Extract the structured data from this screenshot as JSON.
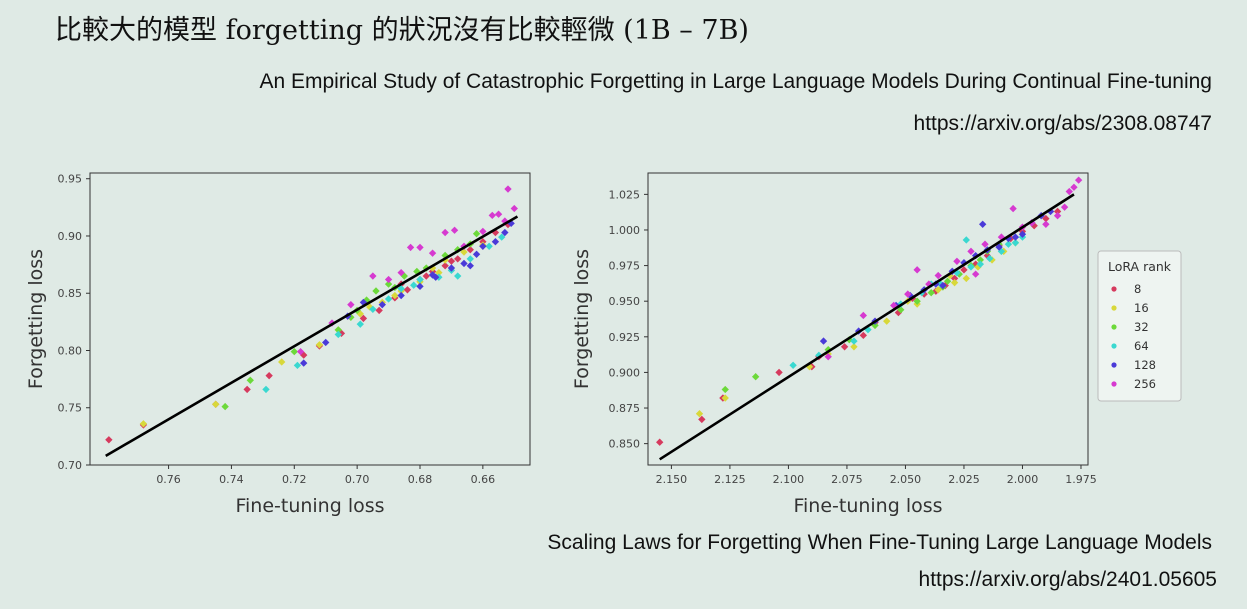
{
  "slide": {
    "title": "比較大的模型 forgetting 的狀況沒有比較輕微 (1B – 7B)"
  },
  "references": [
    {
      "title": "An Empirical Study of Catastrophic Forgetting in Large Language Models During Continual Fine-tuning",
      "url": "https://arxiv.org/abs/2308.08747"
    },
    {
      "title": "Scaling Laws for Forgetting When Fine-Tuning Large Language Models",
      "url": "https://arxiv.org/abs/2401.05605"
    }
  ],
  "colors": {
    "background": "#dfeae5",
    "fit_line": "#000000",
    "series": {
      "8": "#d63a5e",
      "16": "#d8d83a",
      "32": "#6cd93a",
      "64": "#3ad8d0",
      "128": "#4a3ad8",
      "256": "#d63ad0"
    }
  },
  "chart_data": [
    {
      "type": "scatter",
      "title": "",
      "xlabel": "Fine-tuning loss",
      "ylabel": "Forgetting loss",
      "xlim": [
        0.785,
        0.645
      ],
      "ylim": [
        0.7,
        0.955
      ],
      "x_reversed": true,
      "xticks": [
        "0.76",
        "0.74",
        "0.72",
        "0.70",
        "0.68",
        "0.66"
      ],
      "yticks": [
        "0.70",
        "0.75",
        "0.80",
        "0.85",
        "0.90",
        "0.95"
      ],
      "grid": false,
      "legend": null,
      "fit_line": {
        "x": [
          0.78,
          0.649
        ],
        "y": [
          0.708,
          0.917
        ]
      },
      "series": [
        {
          "key": "8",
          "points": [
            [
              0.779,
              0.722
            ],
            [
              0.768,
              0.735
            ],
            [
              0.745,
              0.753
            ],
            [
              0.735,
              0.766
            ],
            [
              0.728,
              0.778
            ],
            [
              0.717,
              0.796
            ],
            [
              0.712,
              0.804
            ],
            [
              0.705,
              0.815
            ],
            [
              0.698,
              0.828
            ],
            [
              0.693,
              0.835
            ],
            [
              0.688,
              0.846
            ],
            [
              0.684,
              0.853
            ],
            [
              0.68,
              0.862
            ],
            [
              0.676,
              0.869
            ],
            [
              0.672,
              0.874
            ],
            [
              0.668,
              0.88
            ],
            [
              0.664,
              0.888
            ],
            [
              0.66,
              0.895
            ],
            [
              0.656,
              0.903
            ],
            [
              0.652,
              0.91
            ],
            [
              0.686,
              0.858
            ],
            [
              0.678,
              0.865
            ],
            [
              0.67,
              0.878
            ]
          ]
        },
        {
          "key": "16",
          "points": [
            [
              0.768,
              0.736
            ],
            [
              0.745,
              0.753
            ],
            [
              0.724,
              0.79
            ],
            [
              0.712,
              0.805
            ],
            [
              0.706,
              0.818
            ],
            [
              0.699,
              0.832
            ],
            [
              0.692,
              0.842
            ],
            [
              0.686,
              0.852
            ],
            [
              0.68,
              0.86
            ],
            [
              0.676,
              0.872
            ],
            [
              0.672,
              0.879
            ],
            [
              0.666,
              0.886
            ],
            [
              0.66,
              0.892
            ],
            [
              0.696,
              0.838
            ],
            [
              0.688,
              0.848
            ],
            [
              0.674,
              0.868
            ]
          ]
        },
        {
          "key": "32",
          "points": [
            [
              0.742,
              0.751
            ],
            [
              0.734,
              0.774
            ],
            [
              0.72,
              0.799
            ],
            [
              0.706,
              0.818
            ],
            [
              0.7,
              0.835
            ],
            [
              0.697,
              0.844
            ],
            [
              0.694,
              0.852
            ],
            [
              0.688,
              0.855
            ],
            [
              0.685,
              0.865
            ],
            [
              0.678,
              0.872
            ],
            [
              0.672,
              0.883
            ],
            [
              0.668,
              0.888
            ],
            [
              0.664,
              0.893
            ],
            [
              0.662,
              0.902
            ],
            [
              0.702,
              0.829
            ],
            [
              0.69,
              0.858
            ],
            [
              0.681,
              0.869
            ]
          ]
        },
        {
          "key": "64",
          "points": [
            [
              0.729,
              0.766
            ],
            [
              0.719,
              0.787
            ],
            [
              0.706,
              0.814
            ],
            [
              0.699,
              0.823
            ],
            [
              0.69,
              0.845
            ],
            [
              0.686,
              0.854
            ],
            [
              0.68,
              0.862
            ],
            [
              0.676,
              0.866
            ],
            [
              0.674,
              0.864
            ],
            [
              0.67,
              0.87
            ],
            [
              0.668,
              0.865
            ],
            [
              0.664,
              0.88
            ],
            [
              0.658,
              0.891
            ],
            [
              0.654,
              0.899
            ],
            [
              0.695,
              0.836
            ],
            [
              0.682,
              0.857
            ]
          ]
        },
        {
          "key": "128",
          "points": [
            [
              0.717,
              0.789
            ],
            [
              0.71,
              0.807
            ],
            [
              0.703,
              0.83
            ],
            [
              0.698,
              0.842
            ],
            [
              0.692,
              0.84
            ],
            [
              0.686,
              0.848
            ],
            [
              0.68,
              0.856
            ],
            [
              0.675,
              0.864
            ],
            [
              0.67,
              0.872
            ],
            [
              0.666,
              0.876
            ],
            [
              0.662,
              0.884
            ],
            [
              0.66,
              0.891
            ],
            [
              0.656,
              0.895
            ],
            [
              0.653,
              0.903
            ],
            [
              0.651,
              0.911
            ],
            [
              0.664,
              0.874
            ],
            [
              0.676,
              0.866
            ]
          ]
        },
        {
          "key": "256",
          "points": [
            [
              0.718,
              0.799
            ],
            [
              0.708,
              0.824
            ],
            [
              0.702,
              0.84
            ],
            [
              0.695,
              0.865
            ],
            [
              0.69,
              0.862
            ],
            [
              0.686,
              0.868
            ],
            [
              0.683,
              0.89
            ],
            [
              0.68,
              0.89
            ],
            [
              0.676,
              0.885
            ],
            [
              0.672,
              0.903
            ],
            [
              0.669,
              0.905
            ],
            [
              0.666,
              0.891
            ],
            [
              0.66,
              0.904
            ],
            [
              0.657,
              0.918
            ],
            [
              0.655,
              0.919
            ],
            [
              0.652,
              0.941
            ],
            [
              0.65,
              0.924
            ],
            [
              0.653,
              0.913
            ]
          ]
        }
      ]
    },
    {
      "type": "scatter",
      "title": "",
      "xlabel": "Fine-tuning loss",
      "ylabel": "Forgetting loss",
      "xlim": [
        2.16,
        1.972
      ],
      "ylim": [
        0.835,
        1.04
      ],
      "x_reversed": true,
      "xticks": [
        "2.150",
        "2.125",
        "2.100",
        "2.075",
        "2.050",
        "2.025",
        "2.000",
        "1.975"
      ],
      "yticks": [
        "0.850",
        "0.875",
        "0.900",
        "0.925",
        "0.950",
        "0.975",
        "1.000",
        "1.025"
      ],
      "grid": false,
      "legend": {
        "title": "LoRA rank",
        "position": "outside-right",
        "entries": [
          "8",
          "16",
          "32",
          "64",
          "128",
          "256"
        ]
      },
      "fit_line": {
        "x": [
          2.155,
          1.978
        ],
        "y": [
          0.839,
          1.025
        ]
      },
      "series": [
        {
          "key": "8",
          "points": [
            [
              2.155,
              0.851
            ],
            [
              2.137,
              0.867
            ],
            [
              2.128,
              0.882
            ],
            [
              2.104,
              0.9
            ],
            [
              2.087,
              0.911
            ],
            [
              2.076,
              0.918
            ],
            [
              2.063,
              0.935
            ],
            [
              2.053,
              0.942
            ],
            [
              2.047,
              0.952
            ],
            [
              2.042,
              0.955
            ],
            [
              2.037,
              0.957
            ],
            [
              2.029,
              0.966
            ],
            [
              2.025,
              0.972
            ],
            [
              2.02,
              0.976
            ],
            [
              2.015,
              0.982
            ],
            [
              2.01,
              0.989
            ],
            [
              2.005,
              0.994
            ],
            [
              2.0,
              0.999
            ],
            [
              1.995,
              1.003
            ],
            [
              1.99,
              1.008
            ],
            [
              1.985,
              1.013
            ],
            [
              2.09,
              0.904
            ],
            [
              2.068,
              0.926
            ],
            [
              2.033,
              0.961
            ]
          ]
        },
        {
          "key": "16",
          "points": [
            [
              2.138,
              0.871
            ],
            [
              2.127,
              0.882
            ],
            [
              2.091,
              0.904
            ],
            [
              2.083,
              0.913
            ],
            [
              2.072,
              0.918
            ],
            [
              2.058,
              0.936
            ],
            [
              2.045,
              0.948
            ],
            [
              2.036,
              0.958
            ],
            [
              2.029,
              0.963
            ],
            [
              2.024,
              0.966
            ],
            [
              2.019,
              0.974
            ],
            [
              2.013,
              0.979
            ],
            [
              2.003,
              0.991
            ],
            [
              2.049,
              0.95
            ],
            [
              2.031,
              0.968
            ],
            [
              2.008,
              0.985
            ]
          ]
        },
        {
          "key": "32",
          "points": [
            [
              2.127,
              0.888
            ],
            [
              2.114,
              0.897
            ],
            [
              2.083,
              0.916
            ],
            [
              2.074,
              0.923
            ],
            [
              2.063,
              0.933
            ],
            [
              2.052,
              0.944
            ],
            [
              2.045,
              0.95
            ],
            [
              2.039,
              0.956
            ],
            [
              2.032,
              0.964
            ],
            [
              2.027,
              0.969
            ],
            [
              2.022,
              0.975
            ],
            [
              2.015,
              0.985
            ],
            [
              2.01,
              0.99
            ],
            [
              2.034,
              0.96
            ],
            [
              2.018,
              0.979
            ]
          ]
        },
        {
          "key": "64",
          "points": [
            [
              2.098,
              0.905
            ],
            [
              2.087,
              0.912
            ],
            [
              2.072,
              0.922
            ],
            [
              2.066,
              0.93
            ],
            [
              2.052,
              0.948
            ],
            [
              2.043,
              0.956
            ],
            [
              2.035,
              0.962
            ],
            [
              2.028,
              0.97
            ],
            [
              2.022,
              0.974
            ],
            [
              2.018,
              0.976
            ],
            [
              2.014,
              0.98
            ],
            [
              2.009,
              0.985
            ],
            [
              2.006,
              0.99
            ],
            [
              2.003,
              0.991
            ],
            [
              2.0,
              0.995
            ],
            [
              2.024,
              0.993
            ],
            [
              2.039,
              0.962
            ]
          ]
        },
        {
          "key": "128",
          "points": [
            [
              2.085,
              0.922
            ],
            [
              2.07,
              0.929
            ],
            [
              2.063,
              0.936
            ],
            [
              2.054,
              0.947
            ],
            [
              2.048,
              0.954
            ],
            [
              2.042,
              0.958
            ],
            [
              2.037,
              0.962
            ],
            [
              2.03,
              0.971
            ],
            [
              2.025,
              0.977
            ],
            [
              2.02,
              0.982
            ],
            [
              2.015,
              0.986
            ],
            [
              2.01,
              0.988
            ],
            [
              2.006,
              0.994
            ],
            [
              2.003,
              0.995
            ],
            [
              2.0,
              0.997
            ],
            [
              1.996,
              1.005
            ],
            [
              1.992,
              1.01
            ],
            [
              1.988,
              1.013
            ],
            [
              2.017,
              1.004
            ],
            [
              2.034,
              0.961
            ]
          ]
        },
        {
          "key": "256",
          "points": [
            [
              2.083,
              0.911
            ],
            [
              2.068,
              0.94
            ],
            [
              2.055,
              0.947
            ],
            [
              2.049,
              0.955
            ],
            [
              2.04,
              0.962
            ],
            [
              2.036,
              0.968
            ],
            [
              2.028,
              0.978
            ],
            [
              2.022,
              0.985
            ],
            [
              2.016,
              0.99
            ],
            [
              2.009,
              0.995
            ],
            [
              2.004,
              1.015
            ],
            [
              2.0,
              1.002
            ],
            [
              1.996,
              1.005
            ],
            [
              1.99,
              1.004
            ],
            [
              1.985,
              1.01
            ],
            [
              1.982,
              1.016
            ],
            [
              1.98,
              1.027
            ],
            [
              1.978,
              1.03
            ],
            [
              1.976,
              1.035
            ],
            [
              2.045,
              0.972
            ],
            [
              2.02,
              0.969
            ]
          ]
        }
      ]
    }
  ]
}
